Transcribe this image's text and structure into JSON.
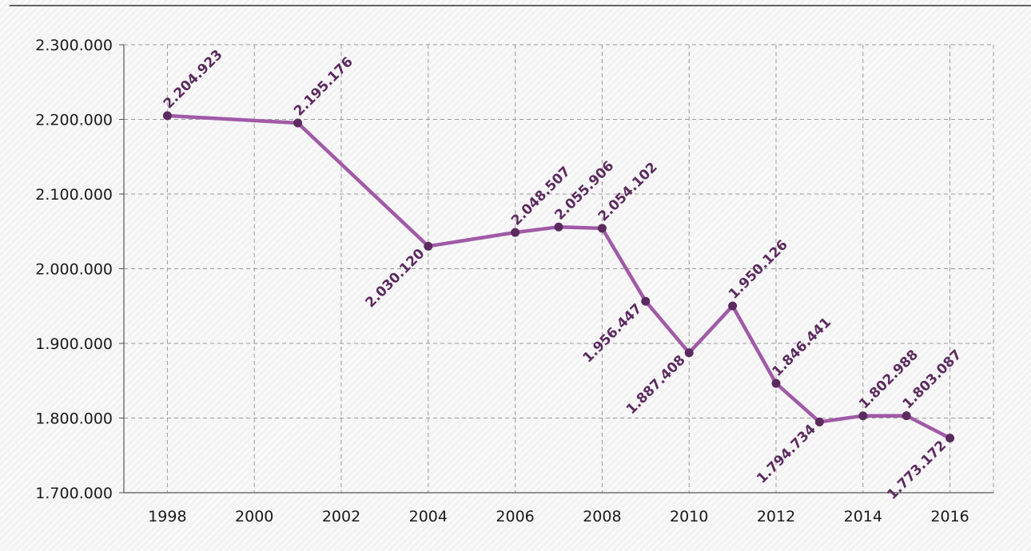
{
  "colors": {
    "series": "#a05aa6",
    "marker": "#5b2a5e",
    "label": "#5b2a5e",
    "grid": "#9a9a9a",
    "axis": "#555555",
    "top_rule": "#333333"
  },
  "chart_data": {
    "type": "line",
    "title": "",
    "xlabel": "",
    "ylabel": "",
    "grid": true,
    "legend": "none",
    "xlim": [
      1997,
      2017
    ],
    "ylim": [
      1700000,
      2300000
    ],
    "x_ticks": [
      1998,
      2000,
      2002,
      2004,
      2006,
      2008,
      2010,
      2012,
      2014,
      2016
    ],
    "x_tick_labels": [
      "1998",
      "2000",
      "2002",
      "2004",
      "2006",
      "2008",
      "2010",
      "2012",
      "2014",
      "2016"
    ],
    "y_ticks": [
      1700000,
      1800000,
      1900000,
      2000000,
      2100000,
      2200000,
      2300000
    ],
    "y_tick_labels": [
      "1.700.000",
      "1.800.000",
      "1.900.000",
      "2.000.000",
      "2.100.000",
      "2.200.000",
      "2.300.000"
    ],
    "series": [
      {
        "x": [
          1998,
          2001,
          2004,
          2006,
          2007,
          2008,
          2009,
          2010,
          2011,
          2012,
          2013,
          2014,
          2015,
          2016
        ],
        "values": [
          2204923,
          2195176,
          2030120,
          2048507,
          2055906,
          2054102,
          1956447,
          1887408,
          1950126,
          1846441,
          1794734,
          1802988,
          1803087,
          1773172
        ],
        "labels": [
          "2.204.923",
          "2.195.176",
          "2.030.120",
          "2.048.507",
          "2.055.906",
          "2.054.102",
          "1.956.447",
          "1.887.408",
          "1.950.126",
          "1.846.441",
          "1.794.734",
          "1.802.988",
          "1.803.087",
          "1.773.172"
        ],
        "label_side": [
          "above",
          "above",
          "below",
          "above",
          "above",
          "above",
          "below",
          "below",
          "above",
          "above",
          "below",
          "above",
          "above",
          "below"
        ]
      }
    ]
  }
}
